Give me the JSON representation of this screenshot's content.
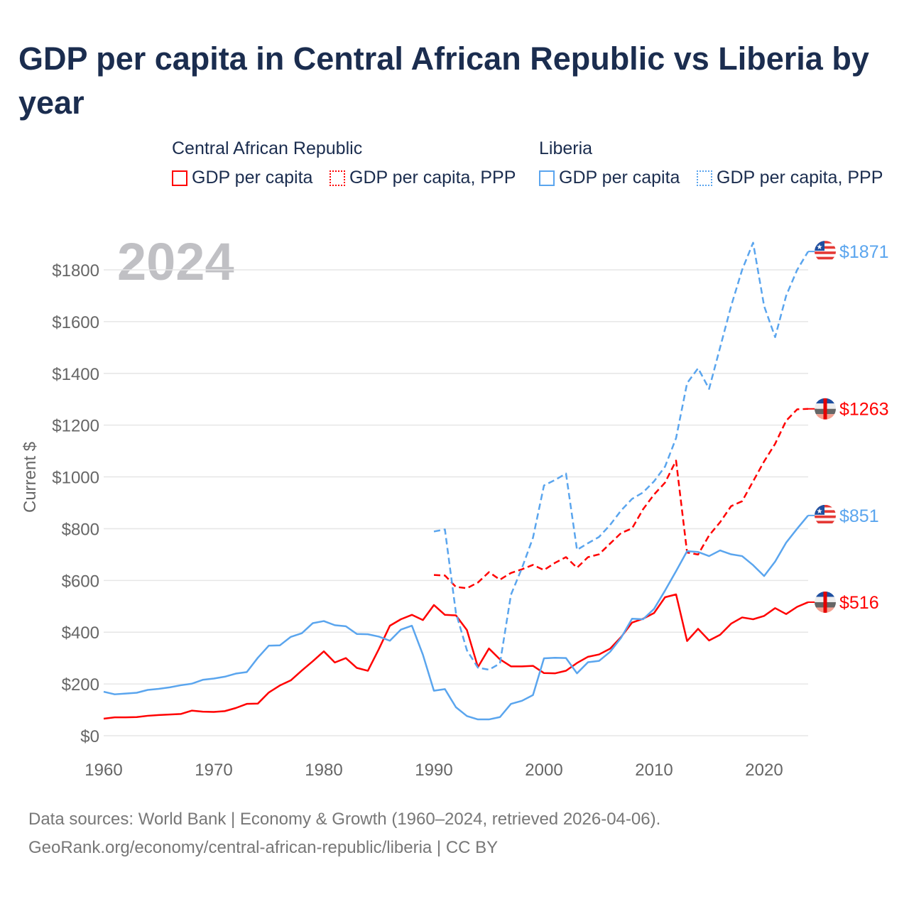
{
  "title": "GDP per capita in Central African Republic vs Liberia by year",
  "legend": {
    "groups": [
      {
        "name": "Central African Republic",
        "items": [
          "GDP per capita",
          "GDP per capita, PPP"
        ]
      },
      {
        "name": "Liberia",
        "items": [
          "GDP per capita",
          "GDP per capita, PPP"
        ]
      }
    ]
  },
  "footer": {
    "line1": "Data sources: World Bank | Economy & Growth (1960–2024, retrieved 2026-04-06).",
    "line2": "GeoRank.org/economy/central-african-republic/liberia | CC BY"
  },
  "chart_data": {
    "type": "line",
    "title": "GDP per capita in Central African Republic vs Liberia by year",
    "ylabel": "Current $",
    "xlabel": "",
    "year_watermark": "2024",
    "ylim": [
      0,
      1900
    ],
    "xlim": [
      1960,
      2024
    ],
    "yticks": [
      0,
      200,
      400,
      600,
      800,
      1000,
      1200,
      1400,
      1600,
      1800
    ],
    "ytick_labels": [
      "$0",
      "$200",
      "$400",
      "$600",
      "$800",
      "$1000",
      "$1200",
      "$1400",
      "$1600",
      "$1800"
    ],
    "xticks": [
      1960,
      1970,
      1980,
      1990,
      2000,
      2010,
      2020
    ],
    "xtick_labels": [
      "1960",
      "1970",
      "1980",
      "1990",
      "2000",
      "2010",
      "2020"
    ],
    "grid": true,
    "colors": {
      "car": "#ff0000",
      "liberia": "#5aa5ee"
    },
    "series": [
      {
        "name": "Central African Republic GDP per capita",
        "country": "car",
        "dashed": false,
        "start": 1960,
        "end_label": "$516",
        "values": [
          66,
          71,
          71,
          72,
          77,
          80,
          82,
          84,
          97,
          93,
          92,
          95,
          107,
          123,
          124,
          167,
          194,
          214,
          252,
          288,
          326,
          283,
          300,
          262,
          251,
          335,
          425,
          450,
          467,
          447,
          505,
          467,
          465,
          408,
          265,
          337,
          295,
          268,
          268,
          270,
          242,
          241,
          251,
          281,
          305,
          314,
          336,
          381,
          437,
          452,
          474,
          535,
          546,
          366,
          413,
          368,
          390,
          433,
          457,
          450,
          463,
          493,
          470,
          498,
          516
        ]
      },
      {
        "name": "Central African Republic GDP per capita, PPP",
        "country": "car",
        "dashed": true,
        "start": 1990,
        "end_label": "$1263",
        "values": [
          621,
          619,
          575,
          570,
          592,
          632,
          603,
          629,
          643,
          660,
          640,
          668,
          690,
          649,
          690,
          701,
          742,
          783,
          801,
          875,
          932,
          978,
          1063,
          708,
          700,
          774,
          825,
          887,
          906,
          983,
          1060,
          1128,
          1217,
          1261,
          1263
        ]
      },
      {
        "name": "Liberia GDP per capita",
        "country": "liberia",
        "dashed": false,
        "start": 1960,
        "end_label": "$851",
        "values": [
          170,
          160,
          163,
          166,
          177,
          181,
          187,
          195,
          201,
          216,
          221,
          228,
          240,
          246,
          301,
          348,
          349,
          382,
          396,
          435,
          443,
          427,
          423,
          393,
          392,
          383,
          367,
          410,
          425,
          313,
          174,
          180,
          110,
          76,
          63,
          63,
          72,
          123,
          135,
          157,
          299,
          301,
          300,
          241,
          284,
          289,
          324,
          378,
          452,
          450,
          490,
          561,
          636,
          713,
          710,
          694,
          716,
          701,
          694,
          659,
          617,
          673,
          746,
          800,
          851
        ]
      },
      {
        "name": "Liberia GDP per capita, PPP",
        "country": "liberia",
        "dashed": true,
        "start": 1990,
        "end_label": "$1871",
        "values": [
          789,
          797,
          475,
          330,
          263,
          255,
          279,
          545,
          648,
          765,
          967,
          988,
          1013,
          718,
          744,
          768,
          814,
          870,
          915,
          940,
          983,
          1040,
          1150,
          1362,
          1420,
          1340,
          1500,
          1660,
          1800,
          1905,
          1660,
          1540,
          1700,
          1800,
          1871
        ]
      }
    ]
  }
}
